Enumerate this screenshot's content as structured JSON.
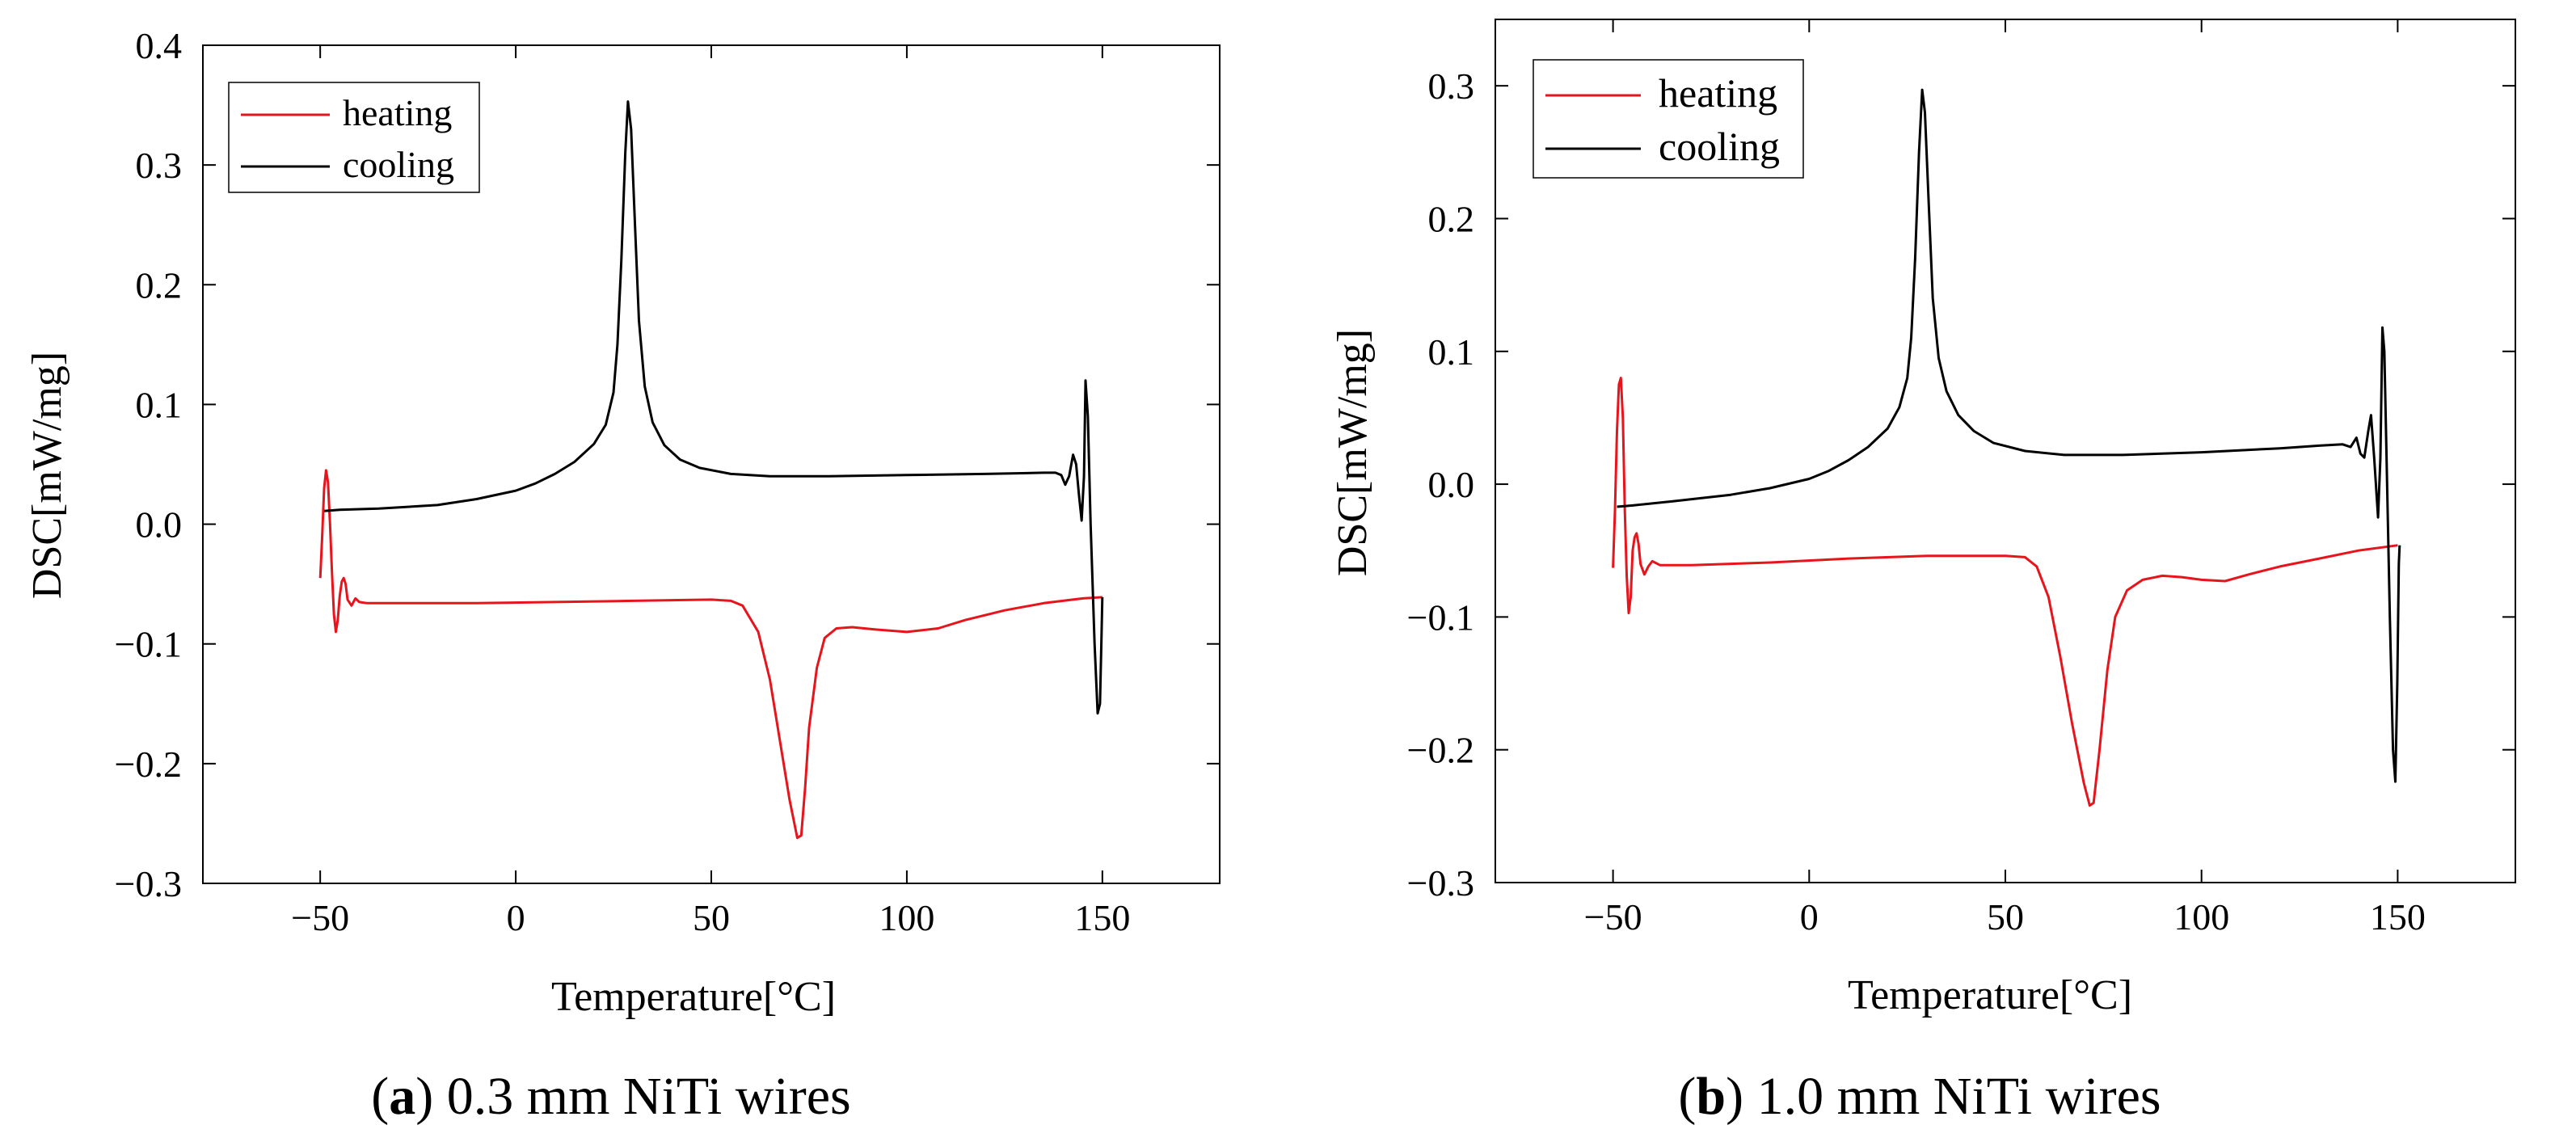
{
  "chart_data": [
    {
      "type": "line",
      "panel_label": "a",
      "caption_text": "0.3 mm NiTi wires",
      "xlabel": "Temperature[°C]",
      "ylabel": "DSC[mW/mg]",
      "xlim": [
        -80,
        180
      ],
      "ylim": [
        -0.3,
        0.4
      ],
      "xticks": [
        -50,
        0,
        50,
        100,
        150
      ],
      "yticks": [
        -0.3,
        -0.2,
        -0.1,
        0.0,
        0.1,
        0.2,
        0.3,
        0.4
      ],
      "xtick_labels": [
        "−50",
        "0",
        "50",
        "100",
        "150"
      ],
      "ytick_labels": [
        "−0.3",
        "−0.2",
        "−0.1",
        "0.0",
        "0.1",
        "0.2",
        "0.3",
        "0.4"
      ],
      "legend": [
        "heating",
        "cooling"
      ],
      "legend_position": "top-left",
      "series": [
        {
          "name": "heating",
          "color": "#e8141c",
          "points": [
            [
              -50,
              -0.045
            ],
            [
              -49.5,
              -0.01
            ],
            [
              -49,
              0.03
            ],
            [
              -48.5,
              0.045
            ],
            [
              -48,
              0.035
            ],
            [
              -47.5,
              0.0
            ],
            [
              -47,
              -0.04
            ],
            [
              -46.5,
              -0.075
            ],
            [
              -46,
              -0.09
            ],
            [
              -45.5,
              -0.08
            ],
            [
              -45,
              -0.06
            ],
            [
              -44.5,
              -0.048
            ],
            [
              -44,
              -0.045
            ],
            [
              -43.5,
              -0.05
            ],
            [
              -43,
              -0.063
            ],
            [
              -42,
              -0.068
            ],
            [
              -41,
              -0.062
            ],
            [
              -40,
              -0.065
            ],
            [
              -38,
              -0.066
            ],
            [
              -30,
              -0.066
            ],
            [
              -10,
              -0.066
            ],
            [
              10,
              -0.065
            ],
            [
              30,
              -0.064
            ],
            [
              50,
              -0.063
            ],
            [
              55,
              -0.064
            ],
            [
              58,
              -0.068
            ],
            [
              62,
              -0.09
            ],
            [
              65,
              -0.13
            ],
            [
              68,
              -0.19
            ],
            [
              70,
              -0.23
            ],
            [
              72,
              -0.262
            ],
            [
              73,
              -0.26
            ],
            [
              74,
              -0.22
            ],
            [
              75,
              -0.17
            ],
            [
              77,
              -0.12
            ],
            [
              79,
              -0.095
            ],
            [
              82,
              -0.087
            ],
            [
              86,
              -0.086
            ],
            [
              92,
              -0.088
            ],
            [
              100,
              -0.09
            ],
            [
              108,
              -0.087
            ],
            [
              115,
              -0.08
            ],
            [
              125,
              -0.072
            ],
            [
              135,
              -0.066
            ],
            [
              145,
              -0.062
            ],
            [
              150,
              -0.061
            ]
          ]
        },
        {
          "name": "cooling",
          "color": "#000000",
          "points": [
            [
              -49,
              0.011
            ],
            [
              -45,
              0.012
            ],
            [
              -35,
              0.013
            ],
            [
              -20,
              0.016
            ],
            [
              -10,
              0.021
            ],
            [
              0,
              0.028
            ],
            [
              5,
              0.034
            ],
            [
              10,
              0.042
            ],
            [
              15,
              0.052
            ],
            [
              20,
              0.067
            ],
            [
              23,
              0.083
            ],
            [
              25,
              0.11
            ],
            [
              26,
              0.15
            ],
            [
              27,
              0.22
            ],
            [
              28,
              0.31
            ],
            [
              28.7,
              0.353
            ],
            [
              29.5,
              0.33
            ],
            [
              30.5,
              0.25
            ],
            [
              31.5,
              0.17
            ],
            [
              33,
              0.115
            ],
            [
              35,
              0.085
            ],
            [
              38,
              0.066
            ],
            [
              42,
              0.054
            ],
            [
              47,
              0.047
            ],
            [
              55,
              0.042
            ],
            [
              65,
              0.04
            ],
            [
              80,
              0.04
            ],
            [
              100,
              0.041
            ],
            [
              120,
              0.042
            ],
            [
              135,
              0.043
            ],
            [
              138,
              0.043
            ],
            [
              139.5,
              0.041
            ],
            [
              140.5,
              0.033
            ],
            [
              141.5,
              0.04
            ],
            [
              142.5,
              0.058
            ],
            [
              143.3,
              0.05
            ],
            [
              144,
              0.025
            ],
            [
              144.7,
              0.003
            ],
            [
              145.3,
              0.04
            ],
            [
              145.7,
              0.12
            ],
            [
              146.3,
              0.09
            ],
            [
              147,
              0.0
            ],
            [
              148,
              -0.1
            ],
            [
              148.8,
              -0.158
            ],
            [
              149.4,
              -0.15
            ],
            [
              149.8,
              -0.09
            ],
            [
              150,
              -0.061
            ]
          ]
        }
      ]
    },
    {
      "type": "line",
      "panel_label": "b",
      "caption_text": "1.0 mm NiTi wires",
      "xlabel": "Temperature[°C]",
      "ylabel": "DSC[mW/mg]",
      "xlim": [
        -80,
        180
      ],
      "ylim": [
        -0.3,
        0.35
      ],
      "xticks": [
        -50,
        0,
        50,
        100,
        150
      ],
      "yticks": [
        -0.3,
        -0.2,
        -0.1,
        0.0,
        0.1,
        0.2,
        0.3
      ],
      "xtick_labels": [
        "−50",
        "0",
        "50",
        "100",
        "150"
      ],
      "ytick_labels": [
        "−0.3",
        "−0.2",
        "−0.1",
        "0.0",
        "0.1",
        "0.2",
        "0.3"
      ],
      "legend": [
        "heating",
        "cooling"
      ],
      "legend_position": "top-left",
      "series": [
        {
          "name": "heating",
          "color": "#e8141c",
          "points": [
            [
              -50,
              -0.063
            ],
            [
              -49.5,
              -0.02
            ],
            [
              -49,
              0.04
            ],
            [
              -48.5,
              0.075
            ],
            [
              -48,
              0.08
            ],
            [
              -47.5,
              0.05
            ],
            [
              -47,
              -0.02
            ],
            [
              -46.5,
              -0.07
            ],
            [
              -46,
              -0.097
            ],
            [
              -45.5,
              -0.085
            ],
            [
              -45,
              -0.05
            ],
            [
              -44.5,
              -0.04
            ],
            [
              -44,
              -0.037
            ],
            [
              -43.5,
              -0.045
            ],
            [
              -43,
              -0.06
            ],
            [
              -42,
              -0.068
            ],
            [
              -41,
              -0.062
            ],
            [
              -40,
              -0.058
            ],
            [
              -38,
              -0.061
            ],
            [
              -30,
              -0.061
            ],
            [
              -10,
              -0.059
            ],
            [
              10,
              -0.056
            ],
            [
              30,
              -0.054
            ],
            [
              50,
              -0.054
            ],
            [
              55,
              -0.055
            ],
            [
              58,
              -0.062
            ],
            [
              61,
              -0.085
            ],
            [
              64,
              -0.13
            ],
            [
              67,
              -0.18
            ],
            [
              70,
              -0.225
            ],
            [
              71.5,
              -0.242
            ],
            [
              72.5,
              -0.24
            ],
            [
              74,
              -0.2
            ],
            [
              76,
              -0.14
            ],
            [
              78,
              -0.1
            ],
            [
              81,
              -0.08
            ],
            [
              85,
              -0.072
            ],
            [
              90,
              -0.069
            ],
            [
              95,
              -0.07
            ],
            [
              100,
              -0.072
            ],
            [
              106,
              -0.073
            ],
            [
              112,
              -0.068
            ],
            [
              120,
              -0.062
            ],
            [
              130,
              -0.056
            ],
            [
              140,
              -0.05
            ],
            [
              150,
              -0.046
            ]
          ]
        },
        {
          "name": "cooling",
          "color": "#000000",
          "points": [
            [
              -49,
              -0.017
            ],
            [
              -45,
              -0.016
            ],
            [
              -35,
              -0.013
            ],
            [
              -20,
              -0.008
            ],
            [
              -10,
              -0.003
            ],
            [
              0,
              0.004
            ],
            [
              5,
              0.01
            ],
            [
              10,
              0.018
            ],
            [
              15,
              0.028
            ],
            [
              20,
              0.042
            ],
            [
              23,
              0.058
            ],
            [
              25,
              0.08
            ],
            [
              26,
              0.11
            ],
            [
              27,
              0.17
            ],
            [
              28,
              0.25
            ],
            [
              28.8,
              0.297
            ],
            [
              29.5,
              0.28
            ],
            [
              30.5,
              0.21
            ],
            [
              31.5,
              0.14
            ],
            [
              33,
              0.095
            ],
            [
              35,
              0.07
            ],
            [
              38,
              0.052
            ],
            [
              42,
              0.04
            ],
            [
              47,
              0.031
            ],
            [
              55,
              0.025
            ],
            [
              65,
              0.022
            ],
            [
              80,
              0.022
            ],
            [
              100,
              0.024
            ],
            [
              120,
              0.027
            ],
            [
              130,
              0.029
            ],
            [
              136,
              0.03
            ],
            [
              138,
              0.028
            ],
            [
              139.5,
              0.035
            ],
            [
              140.5,
              0.023
            ],
            [
              141.5,
              0.02
            ],
            [
              142.5,
              0.04
            ],
            [
              143.2,
              0.052
            ],
            [
              144,
              0.02
            ],
            [
              145,
              -0.025
            ],
            [
              145.6,
              0.02
            ],
            [
              146.1,
              0.118
            ],
            [
              146.6,
              0.1
            ],
            [
              147.3,
              0.0
            ],
            [
              148,
              -0.1
            ],
            [
              148.8,
              -0.2
            ],
            [
              149.4,
              -0.224
            ],
            [
              149.9,
              -0.15
            ],
            [
              150.3,
              -0.06
            ],
            [
              150.5,
              -0.046
            ]
          ]
        }
      ]
    }
  ]
}
